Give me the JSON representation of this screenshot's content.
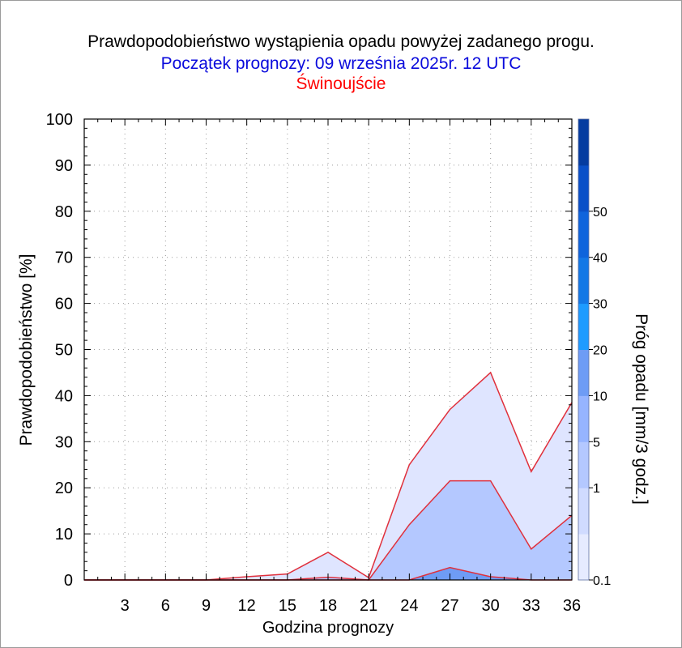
{
  "header": {
    "title": "Prawdopodobieństwo wystąpienia opadu powyżej zadanego progu.",
    "subtitle": "Początek prognozy: 09 września 2025r. 12 UTC",
    "location": "Świnoujście"
  },
  "chart_data": {
    "type": "area",
    "title": "Prawdopodobieństwo wystąpienia opadu powyżej zadanego progu.",
    "subtitle": "Początek prognozy: 09 września 2025r. 12 UTC",
    "location": "Świnoujście",
    "xlabel": "Godzina prognozy",
    "ylabel": "Prawdopodobieństwo [%]",
    "colorbar_label": "Próg opadu [mm/3 godz.]",
    "xlim": [
      0,
      36
    ],
    "ylim": [
      0,
      100
    ],
    "x_ticks": [
      "3",
      "6",
      "9",
      "12",
      "15",
      "18",
      "21",
      "24",
      "27",
      "30",
      "33",
      "36"
    ],
    "y_ticks": [
      "0",
      "10",
      "20",
      "30",
      "40",
      "50",
      "60",
      "70",
      "80",
      "90",
      "100"
    ],
    "x": [
      0,
      3,
      6,
      9,
      12,
      15,
      18,
      21,
      24,
      27,
      30,
      33,
      36
    ],
    "series": [
      {
        "name": "0.1",
        "color": "#dfe5ff",
        "values": [
          0,
          0,
          0,
          0,
          0.7,
          1.3,
          6,
          0.5,
          25,
          37,
          45,
          23.5,
          38.5
        ]
      },
      {
        "name": "1",
        "color": "#b4c8ff",
        "values": [
          0,
          0,
          0,
          0,
          0,
          0,
          0.6,
          0,
          12,
          21.5,
          21.5,
          6.7,
          14
        ]
      },
      {
        "name": "5",
        "color": "#6e9cf5",
        "values": [
          0,
          0,
          0,
          0,
          0,
          0,
          0,
          0,
          0,
          2.7,
          0.7,
          0,
          0
        ]
      }
    ],
    "line_color": "#e0303c",
    "colorbar": {
      "labels": [
        "0.1",
        "1",
        "5",
        "10",
        "20",
        "30",
        "40",
        "50"
      ],
      "colors": [
        "#e6ebff",
        "#d0dbff",
        "#b4c8ff",
        "#96b4ff",
        "#6e9cf5",
        "#1e9bff",
        "#1478e6",
        "#0f64dc",
        "#0a50c8",
        "#053ca0"
      ]
    },
    "grid": true
  }
}
